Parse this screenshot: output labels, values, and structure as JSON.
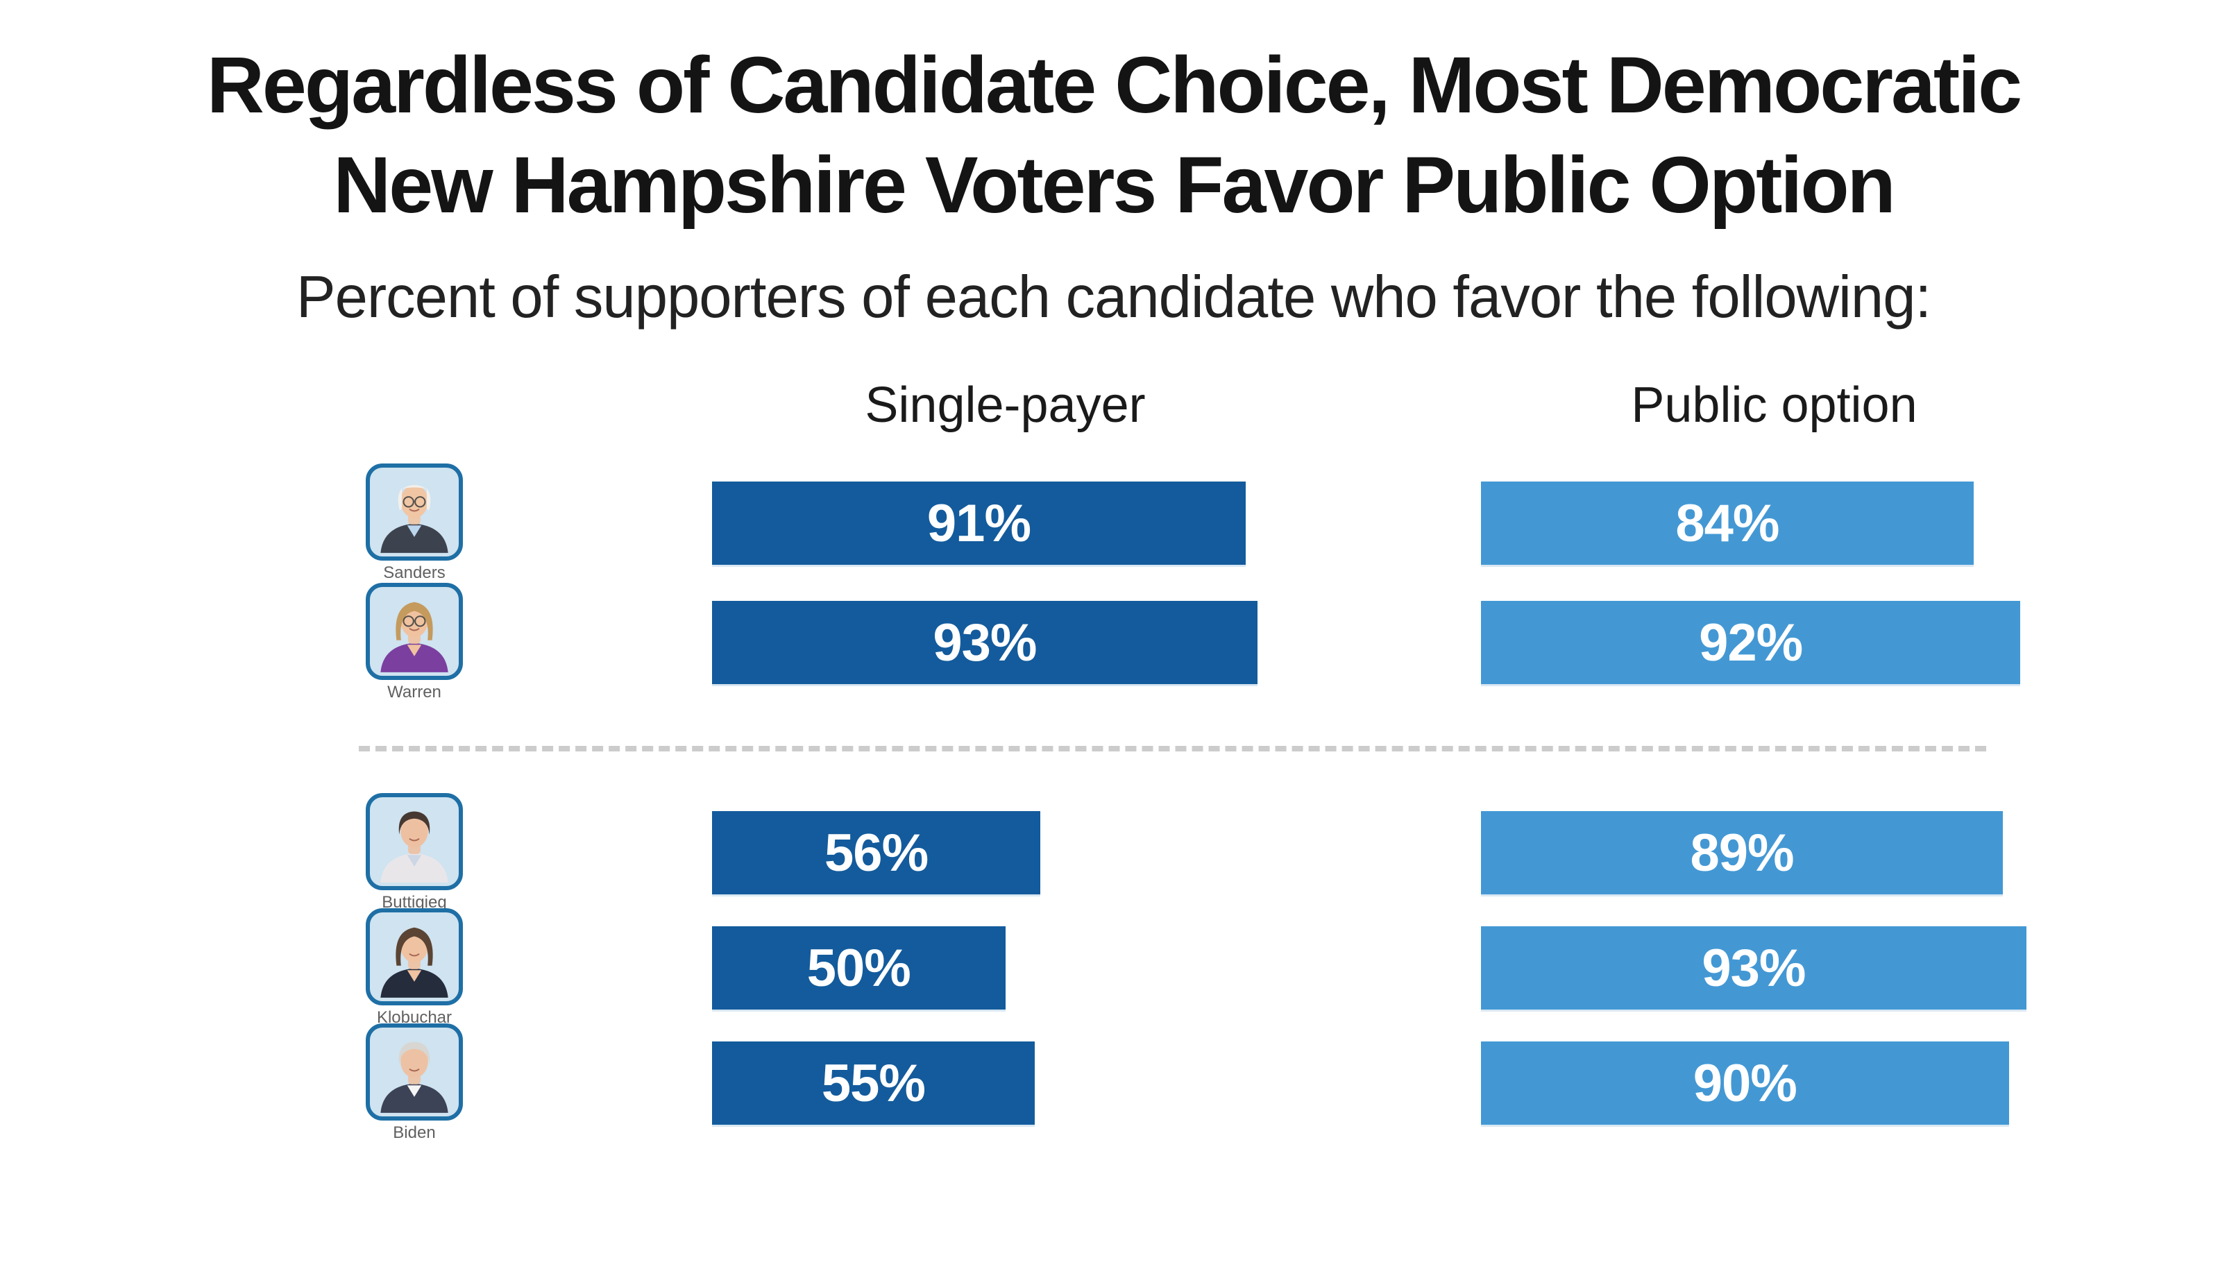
{
  "title": {
    "line1": "Regardless of Candidate Choice, Most Democratic",
    "line2": "New Hampshire Voters Favor Public Option"
  },
  "subtitle": "Percent of supporters of each candidate who favor the following:",
  "column_headers": [
    "Single-payer",
    "Public option"
  ],
  "colors": {
    "single_payer_bar": "#135b9c",
    "public_option_bar": "#4398d4",
    "bar_label": "#ffffff",
    "photo_border": "#1e6fa5",
    "photo_background": "#cfe3f0",
    "candidate_name": "#606060",
    "divider": "#cccccc",
    "title": "#141414"
  },
  "chart_data": {
    "type": "bar",
    "orientation": "horizontal",
    "title": "Regardless of Candidate Choice, Most Democratic New Hampshire Voters Favor Public Option",
    "subtitle": "Percent of supporters of each candidate who favor the following:",
    "categories": [
      "Sanders",
      "Warren",
      "Buttigieg",
      "Klobuchar",
      "Biden"
    ],
    "series": [
      {
        "name": "Single-payer",
        "color": "#135b9c",
        "values": [
          91,
          93,
          56,
          50,
          55
        ]
      },
      {
        "name": "Public option",
        "color": "#4398d4",
        "values": [
          84,
          92,
          89,
          93,
          90
        ]
      }
    ],
    "value_format": "percent",
    "value_label_position": "inside-center",
    "xlim": [
      0,
      100
    ],
    "grid": false,
    "legend_position": "column-headers-top",
    "group_separator_after": "Warren"
  },
  "portraits": [
    {
      "name": "Sanders",
      "skin": "#f0c6a4",
      "hair": "#f2f0ec",
      "suit": "#3d434e",
      "shirt": "#bcd6ee",
      "hair_style": "bald-sides",
      "glasses": true
    },
    {
      "name": "Warren",
      "skin": "#f0c2a0",
      "hair": "#c59a5d",
      "suit": "#7b3fa0",
      "shirt": "#f0c2a0",
      "hair_style": "bob",
      "glasses": true
    },
    {
      "name": "Buttigieg",
      "skin": "#eec0a2",
      "hair": "#463931",
      "suit": "#e9e6ea",
      "shirt": "#ccd6e4",
      "hair_style": "short",
      "glasses": false
    },
    {
      "name": "Klobuchar",
      "skin": "#efc2a2",
      "hair": "#5b4433",
      "suit": "#252c3c",
      "shirt": "#efc2a2",
      "hair_style": "bob",
      "glasses": false
    },
    {
      "name": "Biden",
      "skin": "#edc2a4",
      "hair": "#d8d6d2",
      "suit": "#3c4356",
      "shirt": "#f5f5f5",
      "hair_style": "short",
      "glasses": false
    }
  ]
}
